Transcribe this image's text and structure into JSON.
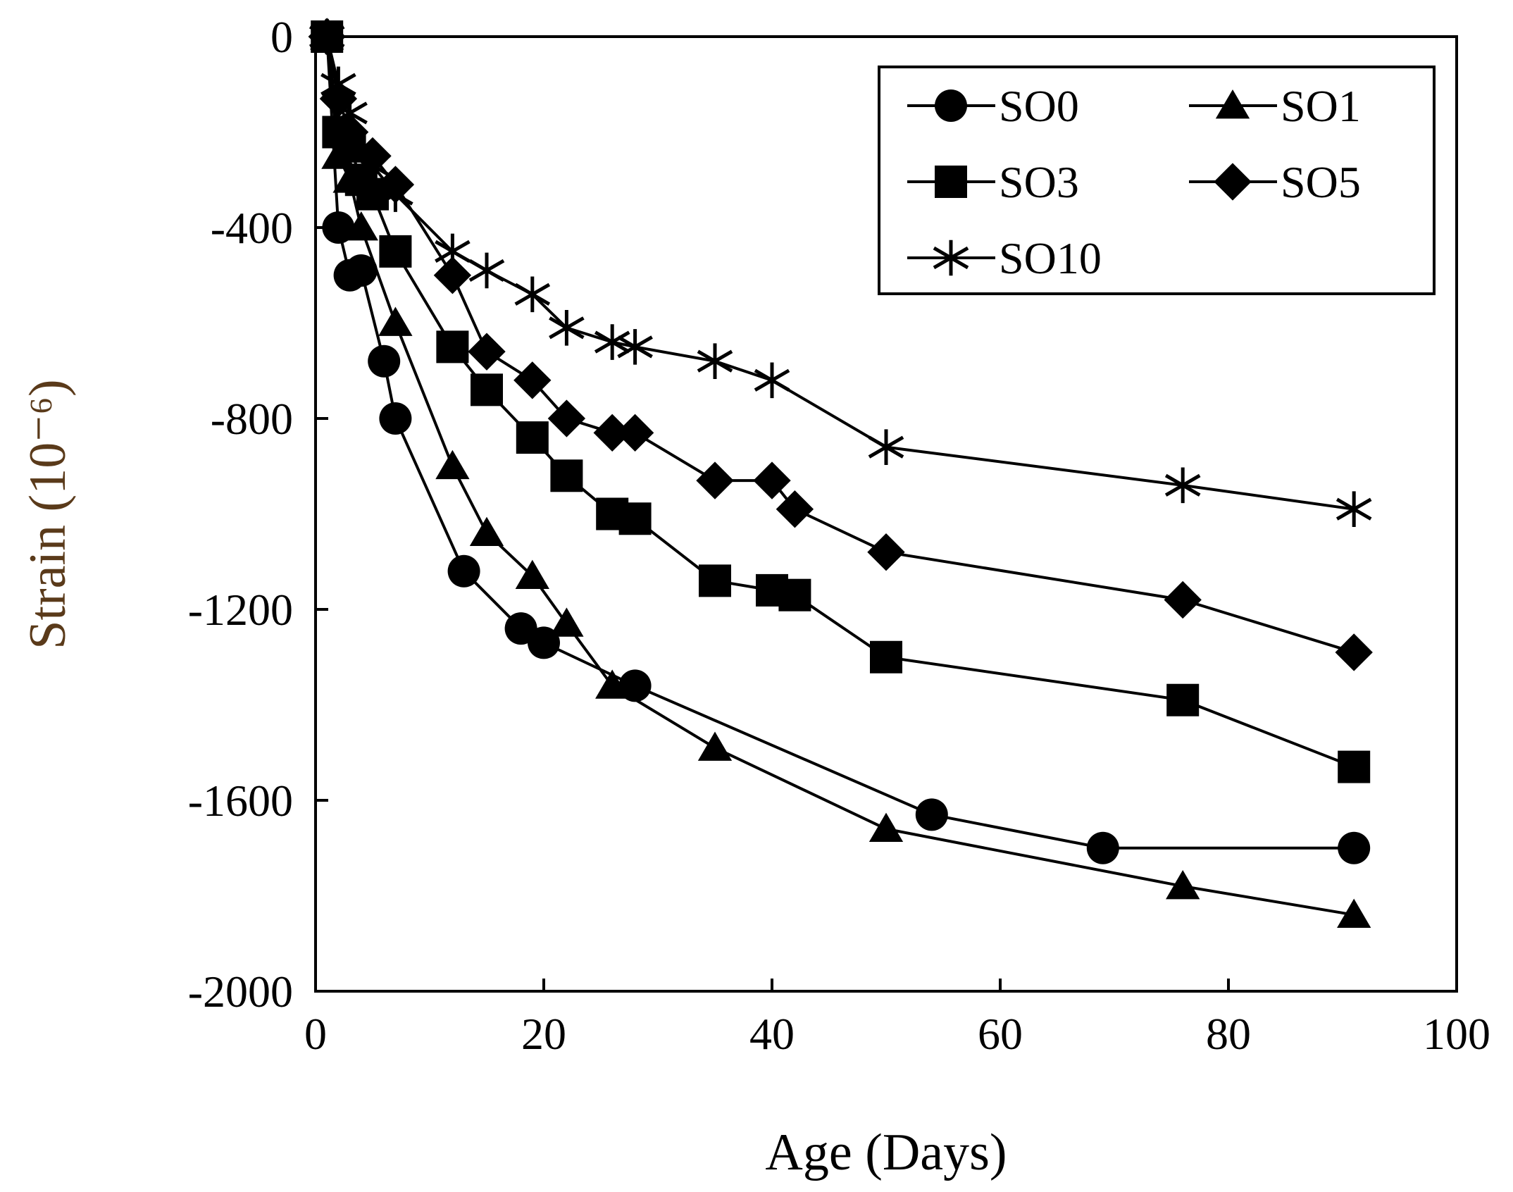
{
  "chart_data": {
    "type": "line",
    "title": "",
    "xlabel": "Age (Days)",
    "ylabel": "Strain (10⁻⁶)",
    "xlim": [
      0,
      100
    ],
    "ylim": [
      -2000,
      0
    ],
    "xticks": [
      0,
      20,
      40,
      60,
      80,
      100
    ],
    "xtick_labels": [
      "0",
      "20",
      "40",
      "60",
      "80",
      "100"
    ],
    "yticks": [
      0,
      -400,
      -800,
      -1200,
      -1600,
      -2000
    ],
    "ytick_labels": [
      "0",
      "-400",
      "-800",
      "-1200",
      "-1600",
      "-2000"
    ],
    "grid": false,
    "legend_position": "top-right",
    "series": [
      {
        "name": "SO0",
        "marker": "circle",
        "x": [
          1,
          2,
          3,
          4,
          6,
          7,
          13,
          18,
          20,
          28,
          54,
          69,
          91
        ],
        "y": [
          0,
          -400,
          -500,
          -490,
          -680,
          -800,
          -1120,
          -1240,
          -1270,
          -1360,
          -1630,
          -1700,
          -1700
        ]
      },
      {
        "name": "SO1",
        "marker": "triangle",
        "x": [
          1,
          2,
          3,
          4,
          7,
          12,
          15,
          19,
          22,
          26,
          35,
          50,
          76,
          91
        ],
        "y": [
          0,
          -250,
          -300,
          -400,
          -600,
          -900,
          -1040,
          -1130,
          -1230,
          -1360,
          -1490,
          -1660,
          -1780,
          -1840
        ]
      },
      {
        "name": "SO3",
        "marker": "square",
        "x": [
          1,
          2,
          3,
          4,
          5,
          7,
          12,
          15,
          19,
          22,
          26,
          28,
          35,
          40,
          42,
          50,
          76,
          91
        ],
        "y": [
          0,
          -200,
          -230,
          -300,
          -330,
          -450,
          -650,
          -740,
          -840,
          -920,
          -1000,
          -1010,
          -1140,
          -1160,
          -1170,
          -1300,
          -1390,
          -1530
        ]
      },
      {
        "name": "SO5",
        "marker": "diamond",
        "x": [
          1,
          2,
          3,
          5,
          7,
          12,
          15,
          19,
          22,
          26,
          28,
          35,
          40,
          42,
          50,
          76,
          91
        ],
        "y": [
          0,
          -130,
          -200,
          -250,
          -310,
          -500,
          -660,
          -720,
          -800,
          -830,
          -830,
          -930,
          -930,
          -990,
          -1080,
          -1180,
          -1290
        ]
      },
      {
        "name": "SO10",
        "marker": "star",
        "x": [
          1,
          2,
          3,
          5,
          7,
          12,
          15,
          19,
          22,
          26,
          28,
          35,
          40,
          50,
          76,
          91
        ],
        "y": [
          0,
          -100,
          -160,
          -270,
          -330,
          -450,
          -490,
          -540,
          -610,
          -640,
          -650,
          -680,
          -720,
          -860,
          -940,
          -990
        ]
      }
    ]
  }
}
